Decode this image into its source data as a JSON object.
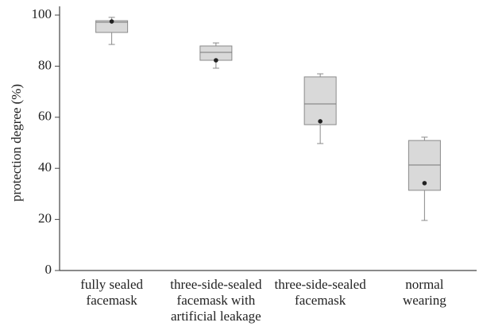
{
  "chart_data": {
    "type": "box",
    "y_label": "protection degree (%)",
    "categories": [
      [
        "fully sealed",
        "facemask"
      ],
      [
        "three-side-sealed",
        "facemask with",
        "artificial leakage"
      ],
      [
        "three-side-sealed",
        "facemask"
      ],
      [
        "normal",
        "wearing"
      ]
    ],
    "whisker_low": [
      88.5,
      79.2,
      49.7,
      19.6
    ],
    "q1": [
      93.2,
      82.3,
      57.1,
      31.4
    ],
    "median": [
      97.2,
      85.4,
      65.2,
      41.3
    ],
    "q3": [
      97.8,
      87.9,
      75.8,
      50.9
    ],
    "whisker_high": [
      99.1,
      89.1,
      77.0,
      52.2
    ],
    "mean": [
      97.5,
      82.3,
      58.4,
      34.2
    ],
    "color": "#d9d9d9",
    "ylim": [
      0,
      100
    ],
    "yticks": [
      0,
      20,
      40,
      60,
      80,
      100
    ],
    "grid": false
  }
}
